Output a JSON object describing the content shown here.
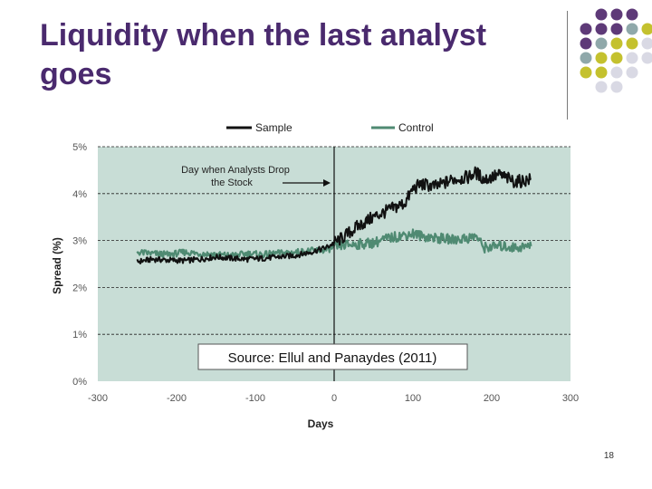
{
  "slide": {
    "title": "Liquidity when the last analyst goes",
    "page_number": "18"
  },
  "colors": {
    "title": "#4a2a6e",
    "plot_background": "#c8ddd6",
    "sample_series": "#111111",
    "control_series": "#4f8a72",
    "dot_palette": [
      "#5e3a78",
      "#8fa8aa",
      "#c4c12e",
      "#d9d9e4"
    ]
  },
  "chart_data": {
    "type": "line",
    "title": "",
    "xlabel": "Days",
    "ylabel": "Spread (%)",
    "xlim": [
      -300,
      300
    ],
    "ylim": [
      0,
      5
    ],
    "x_ticks": [
      "-300",
      "-200",
      "-100",
      "0",
      "100",
      "200",
      "300"
    ],
    "y_ticks": [
      "0%",
      "1%",
      "2%",
      "3%",
      "4%",
      "5%"
    ],
    "grid": "horizontal dashed",
    "legend": "top",
    "vline_x": 0,
    "annotation": {
      "text": [
        "Day when Analysts Drop",
        "the Stock"
      ],
      "target_x": 0
    },
    "source_note": "Source: Ellul and Panaydes (2011)",
    "series": [
      {
        "name": "Sample",
        "x": [
          -250,
          -230,
          -210,
          -190,
          -170,
          -150,
          -130,
          -110,
          -90,
          -70,
          -50,
          -30,
          -10,
          0,
          10,
          30,
          50,
          70,
          90,
          100,
          110,
          130,
          150,
          170,
          180,
          190,
          210,
          230,
          250
        ],
        "y": [
          2.55,
          2.6,
          2.58,
          2.57,
          2.6,
          2.65,
          2.62,
          2.6,
          2.62,
          2.65,
          2.68,
          2.75,
          2.85,
          2.95,
          3.05,
          3.3,
          3.5,
          3.65,
          3.8,
          4.1,
          4.2,
          4.15,
          4.3,
          4.35,
          4.45,
          4.3,
          4.4,
          4.25,
          4.3
        ]
      },
      {
        "name": "Control",
        "x": [
          -250,
          -230,
          -210,
          -190,
          -170,
          -150,
          -130,
          -110,
          -90,
          -70,
          -50,
          -30,
          -10,
          0,
          10,
          30,
          50,
          70,
          90,
          100,
          110,
          130,
          150,
          170,
          180,
          190,
          210,
          230,
          250
        ],
        "y": [
          2.75,
          2.72,
          2.7,
          2.75,
          2.72,
          2.7,
          2.68,
          2.72,
          2.7,
          2.73,
          2.75,
          2.78,
          2.8,
          2.85,
          2.9,
          2.92,
          2.95,
          3.05,
          3.12,
          3.15,
          3.1,
          3.05,
          3.02,
          3.05,
          3.1,
          2.85,
          2.88,
          2.85,
          2.88
        ]
      }
    ]
  }
}
